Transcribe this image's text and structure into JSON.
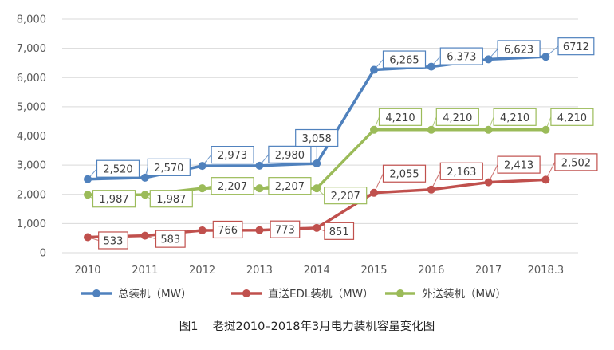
{
  "caption": {
    "label": "图1",
    "text": "老挝2010–2018年3月电力装机容量变化图"
  },
  "chart_data": {
    "type": "line",
    "categories": [
      "2010",
      "2011",
      "2012",
      "2013",
      "2014",
      "2015",
      "2016",
      "2017",
      "2018.3"
    ],
    "ylim": [
      0,
      8000
    ],
    "yticks": [
      "0",
      "1,000",
      "2,000",
      "3,000",
      "4,000",
      "5,000",
      "6,000",
      "7,000",
      "8,000"
    ],
    "grid": true,
    "legend_position": "bottom",
    "series": [
      {
        "name": "总装机（MW）",
        "color": "#4f81bd",
        "values": [
          2520,
          2570,
          2973,
          2980,
          3058,
          6265,
          6373,
          6623,
          6712
        ],
        "labels": [
          "2,520",
          "2,570",
          "2,973",
          "2,980",
          "3,058",
          "6,265",
          "6,373",
          "6,623",
          "6712"
        ]
      },
      {
        "name": "直送EDL装机（MW）",
        "color": "#c0504d",
        "values": [
          533,
          583,
          766,
          773,
          851,
          2055,
          2163,
          2413,
          2502
        ],
        "labels": [
          "533",
          "583",
          "766",
          "773",
          "851",
          "2,055",
          "2,163",
          "2,413",
          "2,502"
        ]
      },
      {
        "name": "外送装机（MW）",
        "color": "#9bbb59",
        "values": [
          1987,
          1987,
          2207,
          2207,
          2207,
          4210,
          4210,
          4210,
          4210
        ],
        "labels": [
          "1,987",
          "1,987",
          "2,207",
          "2,207",
          "2,207",
          "4,210",
          "4,210",
          "4,210",
          "4,210"
        ]
      }
    ]
  }
}
